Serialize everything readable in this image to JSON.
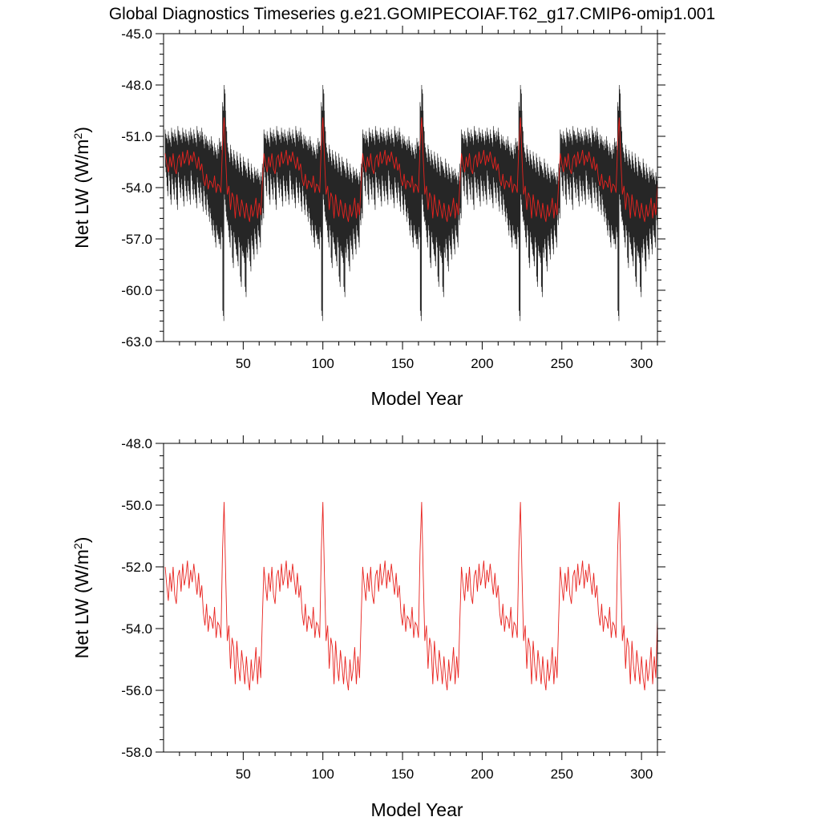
{
  "title": "Global Diagnostics Timeseries g.e21.GOMIPECOIAF.T62_g17.CMIP6-omip1.001",
  "colors": {
    "monthly": "#000000",
    "annual": "#e8231f"
  },
  "chart_data": [
    {
      "type": "line",
      "name": "top-panel",
      "xlabel": "Model Year",
      "ylabel_main": "Net LW (W/m",
      "ylabel_sup": "2",
      "ylabel_close": ")",
      "xlim": [
        0,
        310
      ],
      "ylim": [
        -63.0,
        -45.0
      ],
      "xticks": [
        50,
        100,
        150,
        200,
        250,
        300
      ],
      "xtick_labels": [
        "50",
        "100",
        "150",
        "200",
        "250",
        "300"
      ],
      "yticks": [
        -63.0,
        -60.0,
        -57.0,
        -54.0,
        -51.0,
        -48.0,
        -45.0
      ],
      "ytick_labels": [
        "-63.0",
        "-60.0",
        "-57.0",
        "-54.0",
        "-51.0",
        "-48.0",
        "-45.0"
      ],
      "cycle_years": 62,
      "cycles": 5,
      "series": [
        {
          "name": "monthly",
          "color_key": "monthly",
          "template_x": [
            0,
            1,
            2,
            3,
            4,
            5,
            6,
            7,
            8,
            9,
            10,
            11,
            12,
            13,
            14,
            15,
            16,
            17,
            18,
            19,
            20,
            21,
            22,
            23,
            24,
            25,
            26,
            27,
            28,
            29,
            30,
            31,
            32,
            33,
            34,
            35,
            36,
            37,
            38,
            39,
            40,
            41,
            42,
            43,
            44,
            45,
            46,
            47,
            48,
            49,
            50,
            51,
            52,
            53,
            54,
            55,
            56,
            57,
            58,
            59,
            60,
            61
          ],
          "template_high": [
            -50.6,
            -50.9,
            -50.7,
            -51.1,
            -50.5,
            -50.8,
            -50.6,
            -51.0,
            -50.4,
            -50.7,
            -50.9,
            -50.5,
            -50.8,
            -50.6,
            -51.0,
            -50.7,
            -50.5,
            -50.9,
            -50.6,
            -51.1,
            -50.4,
            -50.8,
            -50.7,
            -50.5,
            -51.2,
            -50.9,
            -51.0,
            -51.3,
            -51.2,
            -51.0,
            -51.6,
            -51.4,
            -51.8,
            -51.5,
            -51.1,
            -51.3,
            -49.0,
            -48.0,
            -50.2,
            -51.4,
            -52.0,
            -51.5,
            -52.2,
            -51.8,
            -52.4,
            -51.9,
            -52.6,
            -52.0,
            -52.8,
            -52.2,
            -52.5,
            -52.9,
            -52.3,
            -53.0,
            -52.6,
            -53.2,
            -52.8,
            -53.0,
            -52.9,
            -53.3,
            -53.1,
            -52.6
          ],
          "template_low": [
            -53.4,
            -54.5,
            -53.6,
            -55.0,
            -53.8,
            -54.7,
            -54.0,
            -55.3,
            -53.7,
            -54.6,
            -54.1,
            -55.1,
            -53.9,
            -54.8,
            -54.2,
            -55.0,
            -53.6,
            -54.7,
            -54.4,
            -55.2,
            -54.0,
            -54.9,
            -54.3,
            -55.4,
            -54.5,
            -55.6,
            -55.0,
            -56.0,
            -55.8,
            -56.8,
            -56.5,
            -57.5,
            -56.8,
            -57.3,
            -57.6,
            -56.9,
            -61.8,
            -55.0,
            -56.0,
            -56.5,
            -57.5,
            -56.8,
            -58.7,
            -57.2,
            -57.9,
            -58.6,
            -57.5,
            -59.8,
            -58.0,
            -58.4,
            -60.4,
            -58.1,
            -57.6,
            -58.9,
            -57.4,
            -58.2,
            -57.0,
            -57.9,
            -56.8,
            -57.5,
            -56.2,
            -55.8
          ],
          "template_mid": [
            -52.0,
            -52.3,
            -52.1,
            -52.4,
            -52.2,
            -52.0,
            -52.3,
            -52.1,
            -52.2,
            -52.4,
            -52.0,
            -52.3,
            -52.1,
            -52.2,
            -52.0,
            -52.3,
            -52.1,
            -52.4,
            -52.2,
            -52.0,
            -52.3,
            -52.2,
            -52.1,
            -52.4,
            -52.6,
            -52.9,
            -53.2,
            -53.6,
            -53.9,
            -54.1,
            -54.3,
            -54.6,
            -54.9,
            -55.1,
            -55.4,
            -55.7,
            -52.5,
            -50.1,
            -52.0,
            -53.6,
            -54.2,
            -54.6,
            -54.9,
            -55.2,
            -55.4,
            -55.6,
            -55.8,
            -56.0,
            -56.1,
            -56.0,
            -55.8,
            -55.9,
            -55.6,
            -55.7,
            -55.4,
            -55.5,
            -55.2,
            -55.3,
            -55.0,
            -55.2,
            -54.5,
            -53.4
          ]
        },
        {
          "name": "annual",
          "color_key": "annual",
          "template_x": [
            0,
            1,
            2,
            3,
            4,
            5,
            6,
            7,
            8,
            9,
            10,
            11,
            12,
            13,
            14,
            15,
            16,
            17,
            18,
            19,
            20,
            21,
            22,
            23,
            24,
            25,
            26,
            27,
            28,
            29,
            30,
            31,
            32,
            33,
            34,
            35,
            36,
            37,
            38,
            39,
            40,
            41,
            42,
            43,
            44,
            45,
            46,
            47,
            48,
            49,
            50,
            51,
            52,
            53,
            54,
            55,
            56,
            57,
            58,
            59,
            60,
            61
          ],
          "template_y": [
            -52.0,
            -52.6,
            -53.1,
            -52.2,
            -52.8,
            -52.0,
            -52.9,
            -53.2,
            -52.3,
            -52.1,
            -52.8,
            -51.9,
            -52.6,
            -52.3,
            -51.8,
            -52.7,
            -52.1,
            -52.5,
            -51.9,
            -52.4,
            -52.9,
            -52.2,
            -53.0,
            -52.6,
            -53.5,
            -53.9,
            -53.2,
            -54.1,
            -53.6,
            -53.7,
            -54.0,
            -53.3,
            -54.3,
            -53.8,
            -53.9,
            -54.3,
            -51.5,
            -49.9,
            -52.3,
            -54.4,
            -53.9,
            -55.3,
            -54.3,
            -54.6,
            -55.8,
            -54.4,
            -55.2,
            -55.7,
            -54.7,
            -55.2,
            -55.8,
            -54.9,
            -55.6,
            -56.0,
            -55.0,
            -55.7,
            -55.3,
            -54.6,
            -55.8,
            -54.9,
            -55.6,
            -53.7
          ]
        }
      ]
    },
    {
      "type": "line",
      "name": "bottom-panel",
      "xlabel": "Model Year",
      "ylabel_main": "Net LW (W/m",
      "ylabel_sup": "2",
      "ylabel_close": ")",
      "xlim": [
        0,
        310
      ],
      "ylim": [
        -58.0,
        -48.0
      ],
      "xticks": [
        50,
        100,
        150,
        200,
        250,
        300
      ],
      "xtick_labels": [
        "50",
        "100",
        "150",
        "200",
        "250",
        "300"
      ],
      "yticks": [
        -58.0,
        -56.0,
        -54.0,
        -52.0,
        -50.0,
        -48.0
      ],
      "ytick_labels": [
        "-58.0",
        "-56.0",
        "-54.0",
        "-52.0",
        "-50.0",
        "-48.0"
      ],
      "cycle_years": 62,
      "cycles": 5,
      "series": [
        {
          "name": "annual",
          "color_key": "annual",
          "template_x": [
            0,
            1,
            2,
            3,
            4,
            5,
            6,
            7,
            8,
            9,
            10,
            11,
            12,
            13,
            14,
            15,
            16,
            17,
            18,
            19,
            20,
            21,
            22,
            23,
            24,
            25,
            26,
            27,
            28,
            29,
            30,
            31,
            32,
            33,
            34,
            35,
            36,
            37,
            38,
            39,
            40,
            41,
            42,
            43,
            44,
            45,
            46,
            47,
            48,
            49,
            50,
            51,
            52,
            53,
            54,
            55,
            56,
            57,
            58,
            59,
            60,
            61
          ],
          "template_y": [
            -52.0,
            -52.6,
            -53.1,
            -52.2,
            -52.8,
            -52.0,
            -52.9,
            -53.2,
            -52.3,
            -52.1,
            -52.8,
            -51.9,
            -52.6,
            -52.3,
            -51.8,
            -52.7,
            -52.1,
            -52.5,
            -51.9,
            -52.4,
            -52.9,
            -52.2,
            -53.0,
            -52.6,
            -53.5,
            -53.9,
            -53.2,
            -54.1,
            -53.6,
            -53.7,
            -54.0,
            -53.3,
            -54.3,
            -53.8,
            -53.9,
            -54.3,
            -51.5,
            -49.9,
            -52.3,
            -54.4,
            -53.9,
            -55.3,
            -54.3,
            -54.6,
            -55.8,
            -54.4,
            -55.2,
            -55.7,
            -54.7,
            -55.2,
            -55.8,
            -54.9,
            -55.6,
            -56.0,
            -55.0,
            -55.7,
            -55.3,
            -54.6,
            -55.8,
            -54.9,
            -55.6,
            -53.7
          ]
        }
      ]
    }
  ]
}
